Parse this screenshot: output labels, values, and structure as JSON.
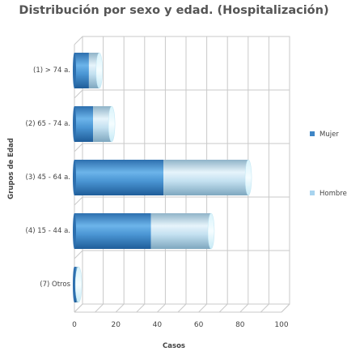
{
  "chart_data": {
    "type": "bar",
    "orientation": "horizontal",
    "stacked": true,
    "style": "3d-cylinder",
    "title": "Distribución por sexo y edad. (Hospitalización)",
    "xlabel": "Casos",
    "ylabel": "Grupos de Edad",
    "xlim": [
      0,
      100
    ],
    "xticks": [
      0,
      20,
      40,
      60,
      80,
      100
    ],
    "categories": [
      "(1) > 74 a.",
      "(2) 65 - 74 a.",
      "(3) 45 - 64 a.",
      "(4) 15 - 44 a.",
      "(7) Otros"
    ],
    "series": [
      {
        "name": "Mujer",
        "color": "#3f86c6",
        "values": [
          7,
          9,
          43,
          37,
          1
        ]
      },
      {
        "name": "Hombre",
        "color": "#a8d4ef",
        "values": [
          5,
          9,
          41,
          29,
          1
        ]
      }
    ],
    "grid": true,
    "legend_position": "right"
  }
}
